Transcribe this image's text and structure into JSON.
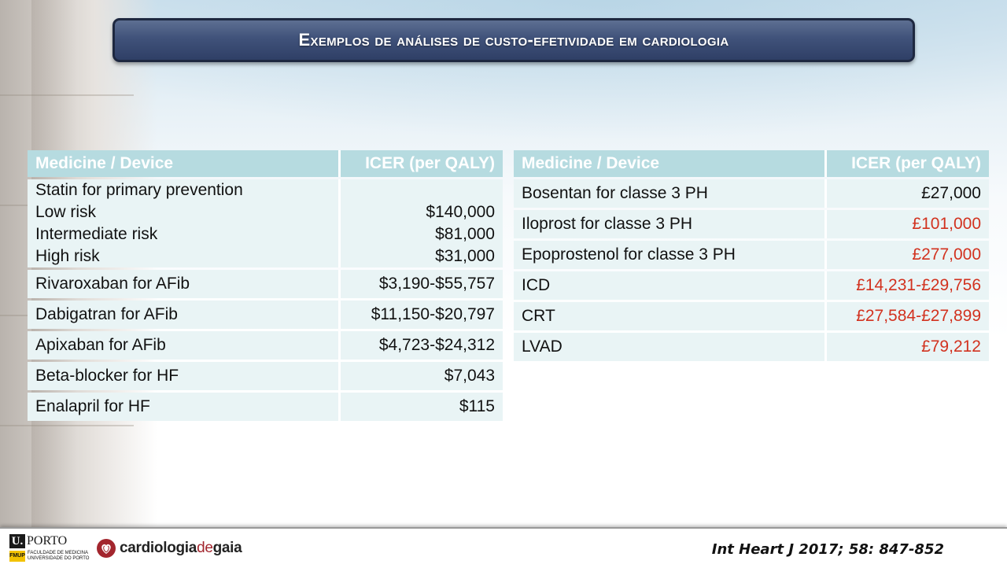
{
  "title": "Exemplos de análises de custo-efetividade em cardiologia",
  "left_table": {
    "headers": [
      "Medicine / Device",
      "ICER (per QALY)"
    ],
    "statin": {
      "label_lines": [
        "Statin for primary prevention",
        "Low risk",
        "Intermediate risk",
        "High risk"
      ],
      "value_lines": [
        "$140,000",
        "$81,000",
        "$31,000"
      ]
    },
    "rows": [
      {
        "name": "Rivaroxaban for AFib",
        "value": "$3,190-$55,757"
      },
      {
        "name": "Dabigatran for AFib",
        "value": "$11,150-$20,797"
      },
      {
        "name": "Apixaban for AFib",
        "value": "$4,723-$24,312"
      },
      {
        "name": "Beta-blocker for HF",
        "value": "$7,043"
      },
      {
        "name": "Enalapril for HF",
        "value": "$115"
      }
    ]
  },
  "right_table": {
    "headers": [
      "Medicine / Device",
      "ICER (per QALY)"
    ],
    "rows": [
      {
        "name": "Bosentan for classe 3 PH",
        "value": "£27,000"
      },
      {
        "name": "Iloprost for classe 3 PH",
        "value": "£101,000"
      },
      {
        "name": "Epoprostenol for classe 3 PH",
        "value": "£277,000"
      },
      {
        "name": "ICD",
        "value": "£14,231-£29,756"
      },
      {
        "name": "CRT",
        "value": "£27,584-£27,899"
      },
      {
        "name": "LVAD",
        "value": "£79,212"
      }
    ]
  },
  "colors": {
    "highlight_red": "#d2321f",
    "header_bg": "#b6dbe0",
    "cell_bg": "#e9f4f5",
    "title_bar": "#40527a"
  },
  "footer": {
    "uporto_letter": "U.",
    "uporto_word": "PORTO",
    "fmup_abbr": "FMUP",
    "fmup_line1": "FACULDADE DE MEDICINA",
    "fmup_line2": "UNIVERSIDADE DO PORTO",
    "gaia_part1": "cardiologia",
    "gaia_part2": "de",
    "gaia_part3": "gaia",
    "gaia_icon": "heart-icon",
    "citation": "Int Heart J 2017; 58: 847-852"
  }
}
